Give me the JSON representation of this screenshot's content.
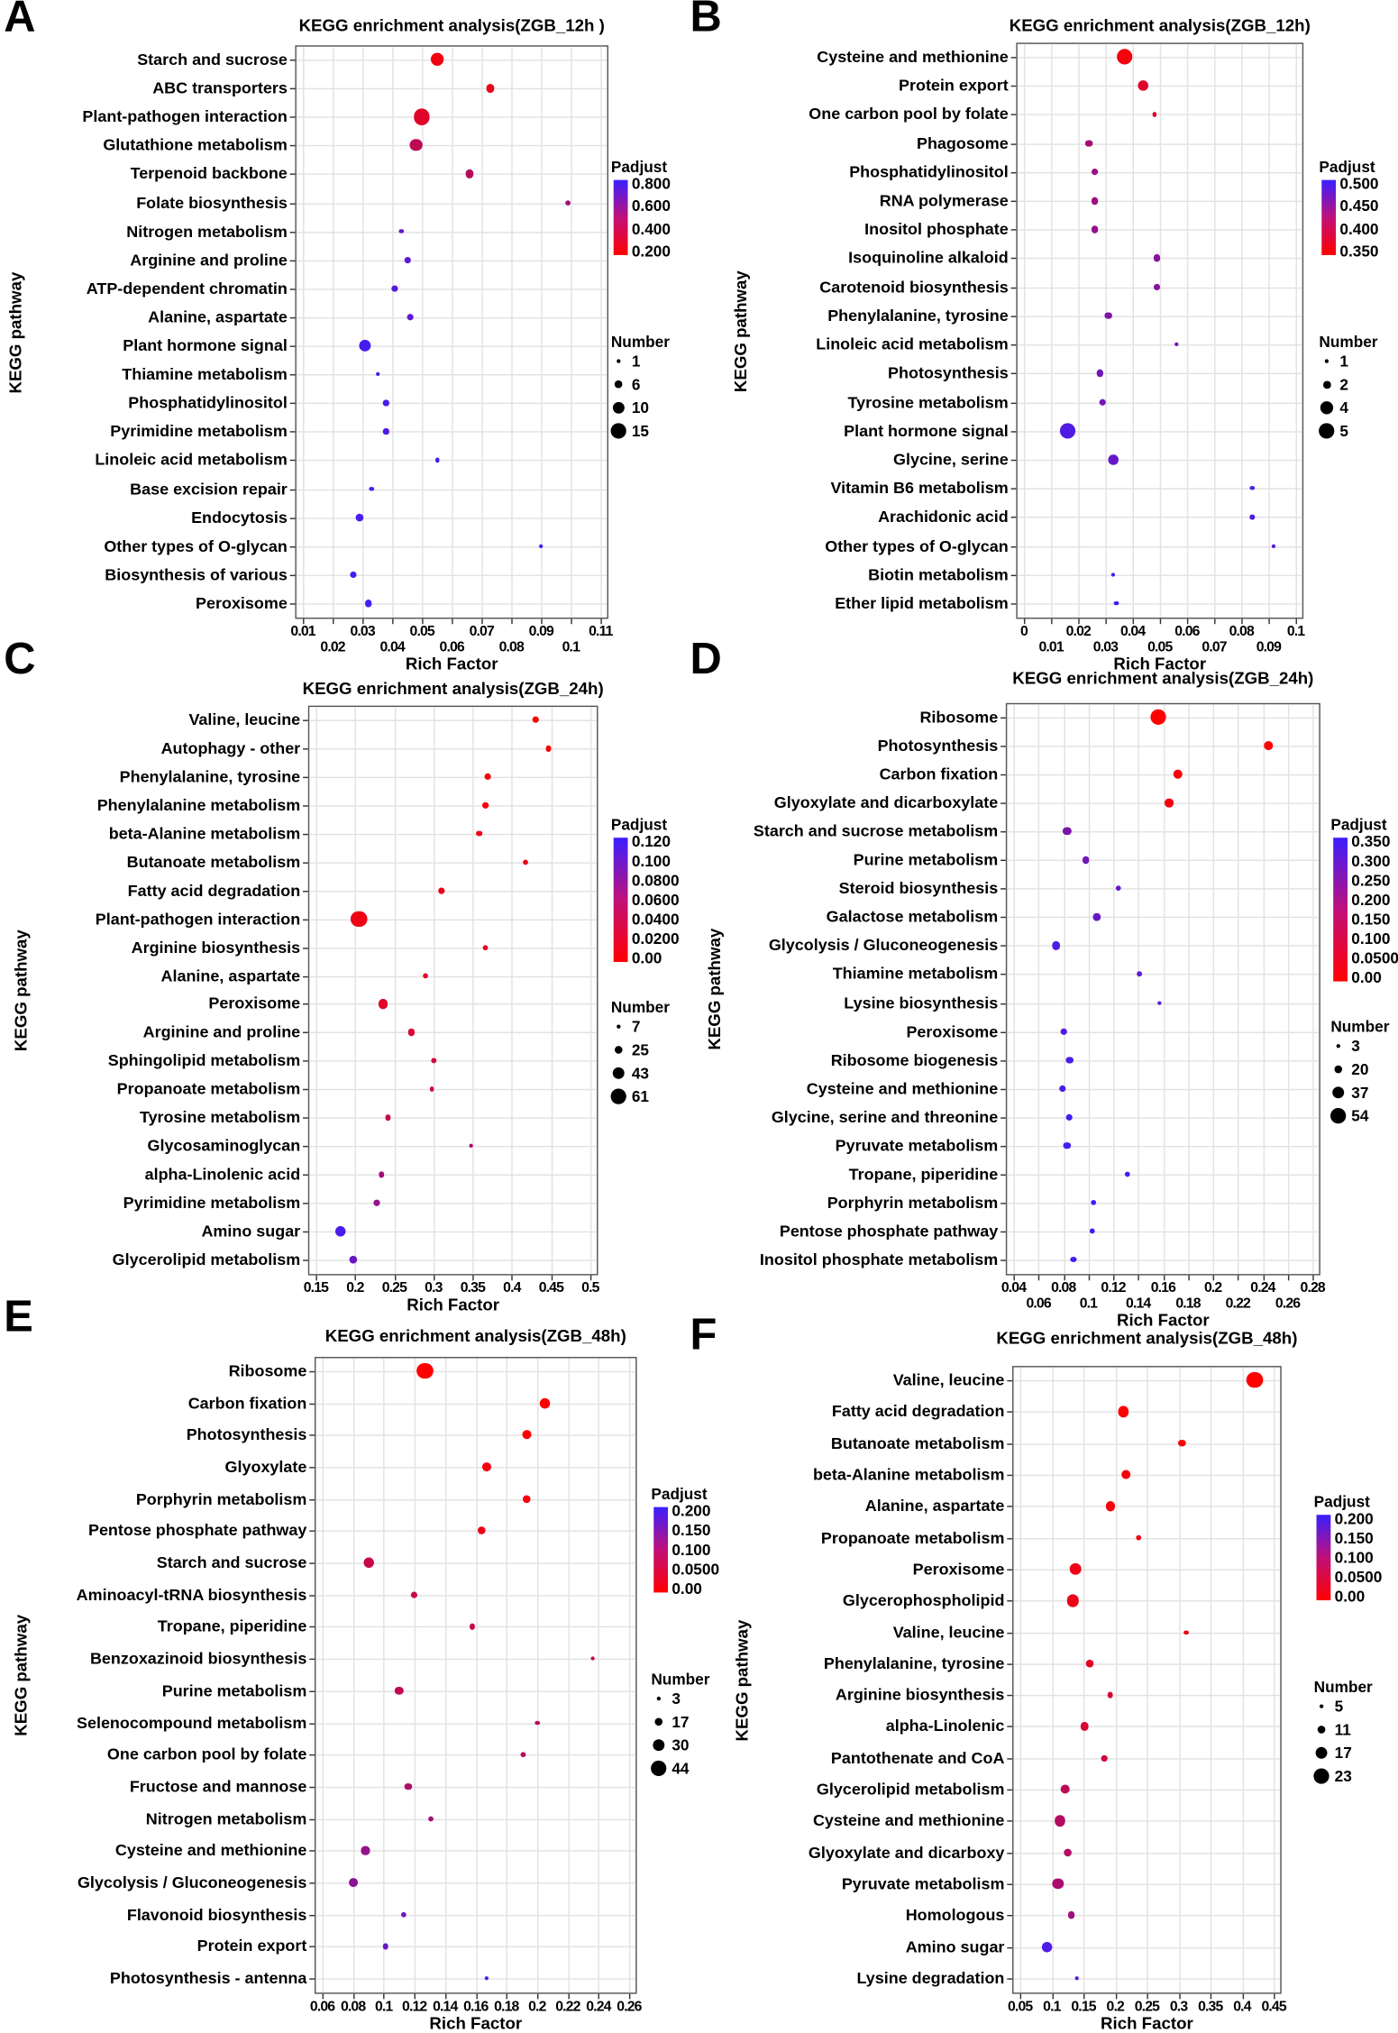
{
  "chart_data": [
    {
      "panel": "A",
      "type": "scatter",
      "title": "KEGG enrichment analysis(ZGB_12h )",
      "xlabel": "Rich Factor",
      "ylabel": "KEGG pathway",
      "xlim": [
        0.01,
        0.11
      ],
      "xticks": [
        "0.01",
        "0.02",
        "0.03",
        "0.04",
        "0.05",
        "0.06",
        "0.07",
        "0.08",
        "0.09",
        "0.1",
        "0.11"
      ],
      "padj_title": "Padjust",
      "padj_ticks": [
        "0.800",
        "0.600",
        "0.400",
        "0.200"
      ],
      "padj_range": [
        0.1,
        0.85
      ],
      "number_title": "Number",
      "number_ticks": [
        1,
        6,
        10,
        15
      ],
      "points": [
        [
          "Starch and sucrose",
          0.055,
          12,
          0.15
        ],
        [
          "ABC transporters",
          0.073,
          6,
          0.18
        ],
        [
          "Plant-pathogen interaction",
          0.05,
          15,
          0.22
        ],
        [
          "Glutathione metabolism",
          0.048,
          10,
          0.35
        ],
        [
          "Terpenoid backbone",
          0.066,
          6,
          0.38
        ],
        [
          "Folate biosynthesis",
          0.099,
          3,
          0.45
        ],
        [
          "Nitrogen metabolism",
          0.043,
          2,
          0.7
        ],
        [
          "Arginine and proline",
          0.045,
          4,
          0.72
        ],
        [
          "ATP-dependent chromatin",
          0.041,
          4,
          0.74
        ],
        [
          "Alanine, aspartate",
          0.046,
          4,
          0.72
        ],
        [
          "Plant hormone signal",
          0.031,
          10,
          0.8
        ],
        [
          "Thiamine metabolism",
          0.035,
          1,
          0.78
        ],
        [
          "Phosphatidylinositol",
          0.038,
          3,
          0.78
        ],
        [
          "Pyrimidine metabolism",
          0.038,
          3,
          0.78
        ],
        [
          "Linoleic acid metabolism",
          0.055,
          1,
          0.8
        ],
        [
          "Base excision repair",
          0.033,
          2,
          0.8
        ],
        [
          "Endocytosis",
          0.029,
          6,
          0.8
        ],
        [
          "Other types of O-glycan",
          0.09,
          1,
          0.82
        ],
        [
          "Biosynthesis of various",
          0.027,
          4,
          0.82
        ],
        [
          "Peroxisome",
          0.032,
          5,
          0.82
        ]
      ]
    },
    {
      "panel": "B",
      "type": "scatter",
      "title": "KEGG enrichment analysis(ZGB_12h)",
      "xlabel": "Rich Factor",
      "ylabel": "KEGG pathway",
      "xlim": [
        0,
        0.1
      ],
      "xticks": [
        "0",
        "0.01",
        "0.02",
        "0.03",
        "0.04",
        "0.05",
        "0.06",
        "0.07",
        "0.08",
        "0.09",
        "0.1"
      ],
      "padj_title": "Padjust",
      "padj_ticks": [
        "0.500",
        "0.450",
        "0.400",
        "0.350"
      ],
      "padj_range": [
        0.33,
        0.51
      ],
      "number_title": "Number",
      "number_ticks": [
        1,
        2,
        4,
        5
      ],
      "points": [
        [
          "Cysteine and methionine",
          0.037,
          5,
          0.34
        ],
        [
          "Protein export",
          0.044,
          3,
          0.36
        ],
        [
          "One carbon pool by folate",
          0.048,
          1,
          0.36
        ],
        [
          "Phagosome",
          0.024,
          2,
          0.41
        ],
        [
          "Phosphatidylinositol",
          0.026,
          2,
          0.42
        ],
        [
          "RNA polymerase",
          0.026,
          2,
          0.42
        ],
        [
          "Inositol phosphate",
          0.026,
          2,
          0.43
        ],
        [
          "Isoquinoline alkaloid",
          0.049,
          2,
          0.44
        ],
        [
          "Carotenoid biosynthesis",
          0.049,
          2,
          0.44
        ],
        [
          "Phenylalanine, tyrosine",
          0.031,
          2,
          0.45
        ],
        [
          "Linoleic acid metabolism",
          0.056,
          1,
          0.46
        ],
        [
          "Photosynthesis",
          0.028,
          2,
          0.46
        ],
        [
          "Tyrosine metabolism",
          0.029,
          2,
          0.46
        ],
        [
          "Plant hormone signal",
          0.016,
          5,
          0.49
        ],
        [
          "Glycine, serine",
          0.033,
          3,
          0.47
        ],
        [
          "Vitamin B6 metabolism",
          0.084,
          1,
          0.49
        ],
        [
          "Arachidonic acid",
          0.084,
          1,
          0.49
        ],
        [
          "Other types of O-glycan",
          0.092,
          1,
          0.48
        ],
        [
          "Biotin metabolism",
          0.033,
          1,
          0.5
        ],
        [
          "Ether lipid metabolism",
          0.034,
          1,
          0.5
        ]
      ]
    },
    {
      "panel": "C",
      "type": "scatter",
      "title": "KEGG enrichment analysis(ZGB_24h)",
      "xlabel": "Rich Factor",
      "ylabel": "KEGG pathway",
      "xlim": [
        0.15,
        0.5
      ],
      "xticks": [
        "0.15",
        "0.2",
        "0.25",
        "0.3",
        "0.35",
        "0.4",
        "0.45",
        "0.5"
      ],
      "padj_title": "Padjust",
      "padj_ticks": [
        "0.120",
        "0.100",
        "0.0800",
        "0.0600",
        "0.0400",
        "0.0200",
        "0.00"
      ],
      "padj_range": [
        0,
        0.13
      ],
      "number_title": "Number",
      "number_ticks": [
        7,
        25,
        43,
        61
      ],
      "points": [
        [
          "Valine, leucine",
          0.43,
          20,
          0.002
        ],
        [
          "Autophagy - other",
          0.447,
          15,
          0.004
        ],
        [
          "Phenylalanine, tyrosine",
          0.369,
          20,
          0.005
        ],
        [
          "Phenylalanine metabolism",
          0.367,
          17,
          0.006
        ],
        [
          "beta-Alanine metabolism",
          0.358,
          15,
          0.008
        ],
        [
          "Butanoate metabolism",
          0.417,
          12,
          0.01
        ],
        [
          "Fatty acid degradation",
          0.31,
          17,
          0.012
        ],
        [
          "Plant-pathogen interaction",
          0.205,
          61,
          0.01
        ],
        [
          "Arginine biosynthesis",
          0.367,
          12,
          0.015
        ],
        [
          "Alanine, aspartate",
          0.29,
          15,
          0.02
        ],
        [
          "Peroxisome",
          0.236,
          30,
          0.02
        ],
        [
          "Arginine and proline",
          0.272,
          20,
          0.025
        ],
        [
          "Sphingolipid metabolism",
          0.3,
          10,
          0.03
        ],
        [
          "Propanoate metabolism",
          0.298,
          10,
          0.03
        ],
        [
          "Tyrosine metabolism",
          0.242,
          15,
          0.04
        ],
        [
          "Glycosaminoglycan",
          0.348,
          7,
          0.05
        ],
        [
          "alpha-Linolenic acid",
          0.234,
          15,
          0.06
        ],
        [
          "Pyrimidine metabolism",
          0.228,
          17,
          0.07
        ],
        [
          "Amino sugar",
          0.181,
          35,
          0.12
        ],
        [
          "Glycerolipid metabolism",
          0.198,
          25,
          0.1
        ]
      ]
    },
    {
      "panel": "D",
      "type": "scatter",
      "title": "KEGG enrichment analysis(ZGB_24h)",
      "xlabel": "Rich Factor",
      "ylabel": "KEGG pathway",
      "xlim": [
        0.04,
        0.28
      ],
      "xticks": [
        "0.04",
        "0.06",
        "0.08",
        "0.1",
        "0.12",
        "0.14",
        "0.16",
        "0.18",
        "0.2",
        "0.22",
        "0.24",
        "0.26",
        "0.28"
      ],
      "padj_title": "Padjust",
      "padj_ticks": [
        "0.350",
        "0.300",
        "0.250",
        "0.200",
        "0.150",
        "0.100",
        "0.0500",
        "0.00"
      ],
      "padj_range": [
        0,
        0.37
      ],
      "number_title": "Number",
      "number_ticks": [
        3,
        20,
        37,
        54
      ],
      "points": [
        [
          "Ribosome",
          0.156,
          54,
          0.0
        ],
        [
          "Photosynthesis",
          0.245,
          25,
          0.0
        ],
        [
          "Carbon fixation",
          0.172,
          25,
          0.01
        ],
        [
          "Glyoxylate and dicarboxylate",
          0.165,
          22,
          0.02
        ],
        [
          "Starch and sucrose metabolism",
          0.083,
          20,
          0.25
        ],
        [
          "Purine metabolism",
          0.098,
          15,
          0.27
        ],
        [
          "Steroid biosynthesis",
          0.124,
          8,
          0.28
        ],
        [
          "Galactose metabolism",
          0.107,
          15,
          0.29
        ],
        [
          "Glycolysis / Gluconeogenesis",
          0.074,
          20,
          0.33
        ],
        [
          "Thiamine metabolism",
          0.141,
          5,
          0.3
        ],
        [
          "Lysine biosynthesis",
          0.157,
          5,
          0.31
        ],
        [
          "Peroxisome",
          0.08,
          15,
          0.33
        ],
        [
          "Ribosome biogenesis",
          0.085,
          15,
          0.34
        ],
        [
          "Cysteine and methionine",
          0.079,
          15,
          0.34
        ],
        [
          "Glycine, serine and threonine",
          0.085,
          13,
          0.35
        ],
        [
          "Pyruvate metabolism",
          0.083,
          15,
          0.35
        ],
        [
          "Tropane, piperidine",
          0.131,
          8,
          0.35
        ],
        [
          "Porphyrin metabolism",
          0.104,
          10,
          0.36
        ],
        [
          "Pentose phosphate pathway",
          0.103,
          10,
          0.36
        ],
        [
          "Inositol phosphate metabolism",
          0.088,
          10,
          0.36
        ]
      ]
    },
    {
      "panel": "E",
      "type": "scatter",
      "title": "KEGG enrichment analysis(ZGB_48h)",
      "xlabel": "Rich Factor",
      "ylabel": "KEGG pathway",
      "xlim": [
        0.06,
        0.26
      ],
      "xticks": [
        "0.06",
        "0.08",
        "0.1",
        "0.12",
        "0.14",
        "0.16",
        "0.18",
        "0.2",
        "0.22",
        "0.24",
        "0.26"
      ],
      "padj_title": "Padjust",
      "padj_ticks": [
        "0.200",
        "0.150",
        "0.100",
        "0.0500",
        "0.00"
      ],
      "padj_range": [
        0,
        0.22
      ],
      "number_title": "Number",
      "number_ticks": [
        3,
        17,
        30,
        44
      ],
      "points": [
        [
          "Ribosome",
          0.127,
          44,
          0.0
        ],
        [
          "Carbon fixation",
          0.205,
          25,
          0.0
        ],
        [
          "Photosynthesis",
          0.193,
          20,
          0.005
        ],
        [
          "Glyoxylate",
          0.167,
          20,
          0.01
        ],
        [
          "Porphyrin metabolism",
          0.193,
          17,
          0.01
        ],
        [
          "Pentose phosphate pathway",
          0.164,
          15,
          0.02
        ],
        [
          "Starch and sucrose",
          0.09,
          25,
          0.06
        ],
        [
          "Aminoacyl-tRNA biosynthesis",
          0.12,
          12,
          0.06
        ],
        [
          "Tropane, piperidine",
          0.158,
          8,
          0.06
        ],
        [
          "Benzoxazinoid biosynthesis",
          0.236,
          3,
          0.06
        ],
        [
          "Purine metabolism",
          0.11,
          17,
          0.07
        ],
        [
          "Selenocompound metabolism",
          0.2,
          5,
          0.08
        ],
        [
          "One carbon pool by folate",
          0.191,
          5,
          0.08
        ],
        [
          "Fructose and mannose",
          0.116,
          12,
          0.09
        ],
        [
          "Nitrogen metabolism",
          0.131,
          8,
          0.1
        ],
        [
          "Cysteine and methionine",
          0.088,
          17,
          0.12
        ],
        [
          "Glycolysis / Gluconeogenesis",
          0.08,
          20,
          0.13
        ],
        [
          "Flavonoid biosynthesis",
          0.113,
          8,
          0.16
        ],
        [
          "Protein export",
          0.101,
          8,
          0.17
        ],
        [
          "Photosynthesis - antenna",
          0.167,
          3,
          0.2
        ]
      ]
    },
    {
      "panel": "F",
      "type": "scatter",
      "title": "KEGG enrichment analysis(ZGB_48h)",
      "xlabel": "Rich Factor",
      "ylabel": "KEGG pathway",
      "xlim": [
        0.05,
        0.45
      ],
      "xticks": [
        "0.05",
        "0.1",
        "0.15",
        "0.2",
        "0.25",
        "0.3",
        "0.35",
        "0.4",
        "0.45"
      ],
      "padj_title": "Padjust",
      "padj_ticks": [
        "0.200",
        "0.150",
        "0.100",
        "0.0500",
        "0.00"
      ],
      "padj_range": [
        0,
        0.21
      ],
      "number_title": "Number",
      "number_ticks": [
        5,
        11,
        17,
        23
      ],
      "points": [
        [
          "Valine, leucine",
          0.42,
          23,
          0.0
        ],
        [
          "Fatty acid degradation",
          0.213,
          15,
          0.0
        ],
        [
          "Butanoate metabolism",
          0.306,
          10,
          0.005
        ],
        [
          "beta-Alanine metabolism",
          0.217,
          13,
          0.01
        ],
        [
          "Alanine, aspartate",
          0.192,
          13,
          0.01
        ],
        [
          "Propanoate metabolism",
          0.237,
          8,
          0.015
        ],
        [
          "Peroxisome",
          0.137,
          17,
          0.02
        ],
        [
          "Glycerophospholipid",
          0.133,
          17,
          0.02
        ],
        [
          "Valine, leucine",
          0.312,
          5,
          0.025
        ],
        [
          "Phenylalanine, tyrosine",
          0.16,
          11,
          0.03
        ],
        [
          "Arginine biosynthesis",
          0.192,
          8,
          0.04
        ],
        [
          "alpha-Linolenic",
          0.152,
          11,
          0.04
        ],
        [
          "Pantothenate and CoA",
          0.183,
          8,
          0.05
        ],
        [
          "Glycerolipid metabolism",
          0.121,
          13,
          0.07
        ],
        [
          "Cysteine and methionine",
          0.113,
          15,
          0.08
        ],
        [
          "Glyoxylate and dicarboxy",
          0.125,
          11,
          0.08
        ],
        [
          "Pyruvate metabolism",
          0.11,
          15,
          0.09
        ],
        [
          "Homologous",
          0.131,
          10,
          0.1
        ],
        [
          "Amino sugar",
          0.092,
          15,
          0.19
        ],
        [
          "Lysine degradation",
          0.14,
          5,
          0.18
        ]
      ]
    }
  ]
}
